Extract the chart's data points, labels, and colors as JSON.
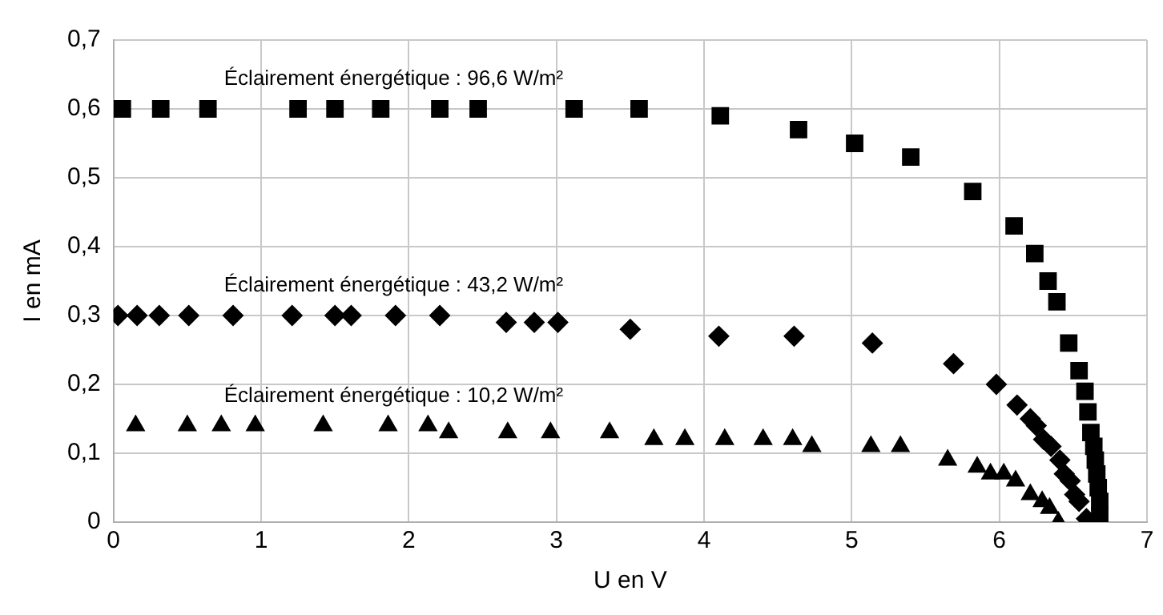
{
  "chart_data": {
    "type": "scatter",
    "xlabel": "U en V",
    "ylabel": "I en mA",
    "xlim": [
      0,
      7
    ],
    "xticks": [
      0,
      1,
      2,
      3,
      4,
      5,
      6,
      7
    ],
    "ylim": [
      0,
      0.7
    ],
    "yticks": [
      {
        "value": 0,
        "label": "0"
      },
      {
        "value": 0.1,
        "label": "0,1"
      },
      {
        "value": 0.2,
        "label": "0,2"
      },
      {
        "value": 0.3,
        "label": "0,3"
      },
      {
        "value": 0.4,
        "label": "0,4"
      },
      {
        "value": 0.5,
        "label": "0,5"
      },
      {
        "value": 0.6,
        "label": "0,6"
      },
      {
        "value": 0.7,
        "label": "0,7"
      }
    ],
    "grid": true,
    "legend": false,
    "series": [
      {
        "name": "Éclairement énergétique : 96,6 W/m²",
        "color": "#000000",
        "marker": "square",
        "x": [
          0.06,
          0.32,
          0.64,
          1.25,
          1.5,
          1.81,
          2.21,
          2.47,
          3.12,
          3.56,
          4.11,
          4.64,
          5.02,
          5.4,
          5.82,
          6.1,
          6.24,
          6.33,
          6.39,
          6.47,
          6.54,
          6.58,
          6.6,
          6.62,
          6.64,
          6.65,
          6.66,
          6.67,
          6.68,
          6.68
        ],
        "values": [
          0.6,
          0.6,
          0.6,
          0.6,
          0.6,
          0.6,
          0.6,
          0.6,
          0.6,
          0.6,
          0.59,
          0.57,
          0.55,
          0.53,
          0.48,
          0.43,
          0.39,
          0.35,
          0.32,
          0.26,
          0.22,
          0.19,
          0.16,
          0.13,
          0.11,
          0.09,
          0.07,
          0.05,
          0.03,
          0.01
        ]
      },
      {
        "name": "Éclairement énergétique : 43,2 W/m²",
        "color": "#000000",
        "marker": "diamond",
        "x": [
          0.03,
          0.16,
          0.31,
          0.51,
          0.81,
          1.21,
          1.5,
          1.61,
          1.91,
          2.21,
          2.66,
          2.85,
          3.01,
          3.5,
          4.1,
          4.61,
          5.14,
          5.69,
          5.98,
          6.12,
          6.21,
          6.25,
          6.3,
          6.35,
          6.41,
          6.44,
          6.48,
          6.51,
          6.54,
          6.57,
          6.59
        ],
        "values": [
          0.3,
          0.3,
          0.3,
          0.3,
          0.3,
          0.3,
          0.3,
          0.3,
          0.3,
          0.3,
          0.29,
          0.29,
          0.29,
          0.28,
          0.27,
          0.27,
          0.26,
          0.23,
          0.2,
          0.17,
          0.15,
          0.14,
          0.12,
          0.11,
          0.09,
          0.07,
          0.06,
          0.04,
          0.03,
          null,
          0.005
        ]
      },
      {
        "name": "Éclairement énergétique : 10,2 W/m²",
        "color": "#000000",
        "marker": "triangle",
        "x": [
          0.15,
          0.5,
          0.73,
          0.96,
          1.39,
          1.42,
          1.86,
          2.13,
          2.27,
          2.67,
          2.96,
          3.36,
          3.66,
          3.87,
          4.14,
          4.4,
          4.6,
          4.73,
          5.13,
          5.33,
          5.65,
          5.85,
          5.94,
          6.03,
          6.11,
          6.21,
          6.29,
          6.34,
          6.4
        ],
        "values": [
          0.14,
          0.14,
          0.14,
          0.14,
          null,
          0.14,
          0.14,
          0.14,
          0.13,
          0.13,
          0.13,
          0.13,
          0.12,
          0.12,
          0.12,
          0.12,
          0.12,
          0.11,
          0.11,
          0.11,
          0.09,
          0.08,
          0.07,
          0.07,
          0.06,
          0.04,
          0.03,
          0.02,
          0.0
        ]
      }
    ]
  }
}
